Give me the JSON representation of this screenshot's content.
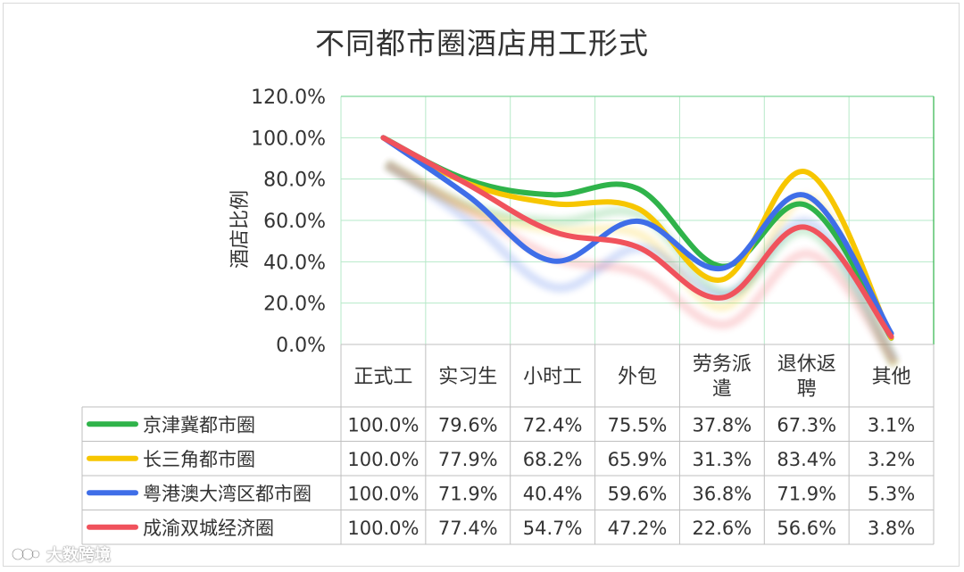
{
  "chart_data": {
    "type": "line",
    "title": "不同都市圈酒店用工形式",
    "ylabel": "酒店比例",
    "ylim": [
      0,
      120
    ],
    "y_ticks": [
      "0.0%",
      "20.0%",
      "40.0%",
      "60.0%",
      "80.0%",
      "100.0%",
      "120.0%"
    ],
    "categories": [
      [
        "正式工"
      ],
      [
        "实习生"
      ],
      [
        "小时工"
      ],
      [
        "外包"
      ],
      [
        "劳务派",
        "遣"
      ],
      [
        "退休返",
        "聘"
      ],
      [
        "其他"
      ]
    ],
    "series": [
      {
        "name": "京津冀都市圈",
        "color": "#2fb34a",
        "values": [
          100.0,
          79.6,
          72.4,
          75.5,
          37.8,
          67.3,
          3.1
        ],
        "labels": [
          "100.0%",
          "79.6%",
          "72.4%",
          "75.5%",
          "37.8%",
          "67.3%",
          "3.1%"
        ]
      },
      {
        "name": "长三角都市圈",
        "color": "#f7c600",
        "values": [
          100.0,
          77.9,
          68.2,
          65.9,
          31.3,
          83.4,
          3.2
        ],
        "labels": [
          "100.0%",
          "77.9%",
          "68.2%",
          "65.9%",
          "31.3%",
          "83.4%",
          "3.2%"
        ]
      },
      {
        "name": "粤港澳大湾区都市圈",
        "color": "#3f6ee8",
        "values": [
          100.0,
          71.9,
          40.4,
          59.6,
          36.8,
          71.9,
          5.3
        ],
        "labels": [
          "100.0%",
          "71.9%",
          "40.4%",
          "59.6%",
          "36.8%",
          "71.9%",
          "5.3%"
        ]
      },
      {
        "name": "成渝双城经济圈",
        "color": "#f0525c",
        "values": [
          100.0,
          77.4,
          54.7,
          47.2,
          22.6,
          56.6,
          3.8
        ],
        "labels": [
          "100.0%",
          "77.4%",
          "54.7%",
          "47.2%",
          "22.6%",
          "56.6%",
          "3.8%"
        ]
      }
    ],
    "grid": true,
    "legend": "data-table"
  },
  "watermark": {
    "text": "大数跨境"
  },
  "colors": {
    "grid": "#b6e9c8",
    "table_border": "#bfbfbf",
    "text": "#333333"
  }
}
